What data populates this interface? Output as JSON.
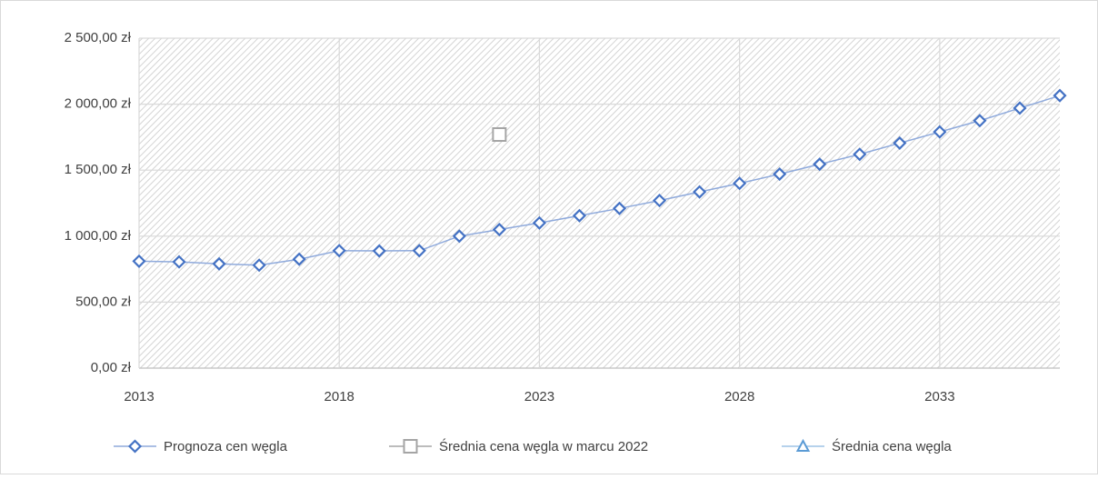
{
  "chart_data": {
    "type": "line",
    "x": [
      2013,
      2014,
      2015,
      2016,
      2017,
      2018,
      2019,
      2020,
      2021,
      2022,
      2023,
      2024,
      2025,
      2026,
      2027,
      2028,
      2029,
      2030,
      2031,
      2032,
      2033,
      2034,
      2035,
      2036
    ],
    "series": [
      {
        "name": "Prognoza cen węgla",
        "color": "#4472c4",
        "line_color": "#8faadc",
        "marker": "diamond",
        "values": [
          810,
          805,
          790,
          780,
          825,
          890,
          888,
          890,
          1000,
          1050,
          1100,
          1155,
          1210,
          1270,
          1335,
          1400,
          1470,
          1545,
          1620,
          1705,
          1790,
          1875,
          1970,
          2065
        ]
      },
      {
        "name": "Średnia cena węgla w marcu 2022",
        "color": "#a5a5a5",
        "line_color": "#a5a5a5",
        "marker": "square",
        "values": [
          null,
          null,
          null,
          null,
          null,
          null,
          null,
          null,
          null,
          1770,
          null,
          null,
          null,
          null,
          null,
          null,
          null,
          null,
          null,
          null,
          null,
          null,
          null,
          null
        ]
      },
      {
        "name": "Średnia cena węgla",
        "color": "#5b9bd5",
        "line_color": "#9dc3e6",
        "marker": "triangle",
        "values": [
          null,
          null,
          null,
          null,
          null,
          null,
          null,
          null,
          null,
          null,
          null,
          null,
          null,
          null,
          null,
          null,
          null,
          null,
          null,
          null,
          null,
          null,
          null,
          null
        ]
      }
    ],
    "xlim": [
      2013,
      2036
    ],
    "xticks": [
      2013,
      2018,
      2023,
      2028,
      2033
    ],
    "ylim": [
      0,
      2500
    ],
    "yticks": [
      {
        "value": 0,
        "label": "0,00 zł"
      },
      {
        "value": 500,
        "label": "500,00 zł"
      },
      {
        "value": 1000,
        "label": "1 000,00 zł"
      },
      {
        "value": 1500,
        "label": "1 500,00 zł"
      },
      {
        "value": 2000,
        "label": "2 000,00 zł"
      },
      {
        "value": 2500,
        "label": "2 500,00 zł"
      }
    ],
    "grid": true,
    "legend": "bottom"
  }
}
